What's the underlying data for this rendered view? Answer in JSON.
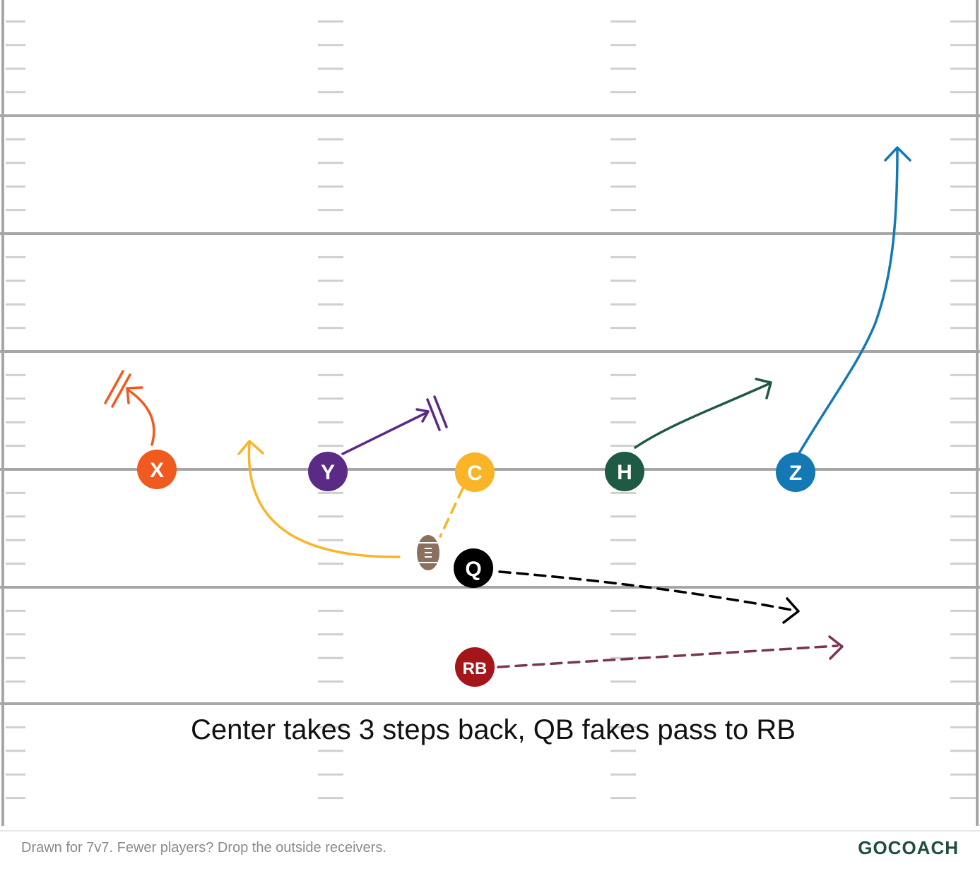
{
  "play": {
    "caption": "Center takes 3 steps back, QB fakes pass to RB",
    "players": [
      {
        "id": "X",
        "label": "X",
        "color": "#f05a1e"
      },
      {
        "id": "Y",
        "label": "Y",
        "color": "#5b2a86"
      },
      {
        "id": "C",
        "label": "C",
        "color": "#f9b427"
      },
      {
        "id": "H",
        "label": "H",
        "color": "#1f5a44"
      },
      {
        "id": "Z",
        "label": "Z",
        "color": "#1478b4"
      },
      {
        "id": "Q",
        "label": "Q",
        "color": "#000000"
      },
      {
        "id": "RB",
        "label": "RB",
        "color": "#a4161a"
      }
    ],
    "ball": {
      "icon": "football-icon",
      "color": "#8b7060"
    },
    "route_colors": {
      "X": "#f05a1e",
      "Y": "#5b2a86",
      "C": "#f9b427",
      "H": "#1f5a44",
      "Z": "#1478b4",
      "Q": "#000000",
      "RB": "#7a3550"
    }
  },
  "footer": {
    "note": "Drawn for 7v7. Fewer players? Drop the outside receivers.",
    "brand": "GOCOACH"
  }
}
